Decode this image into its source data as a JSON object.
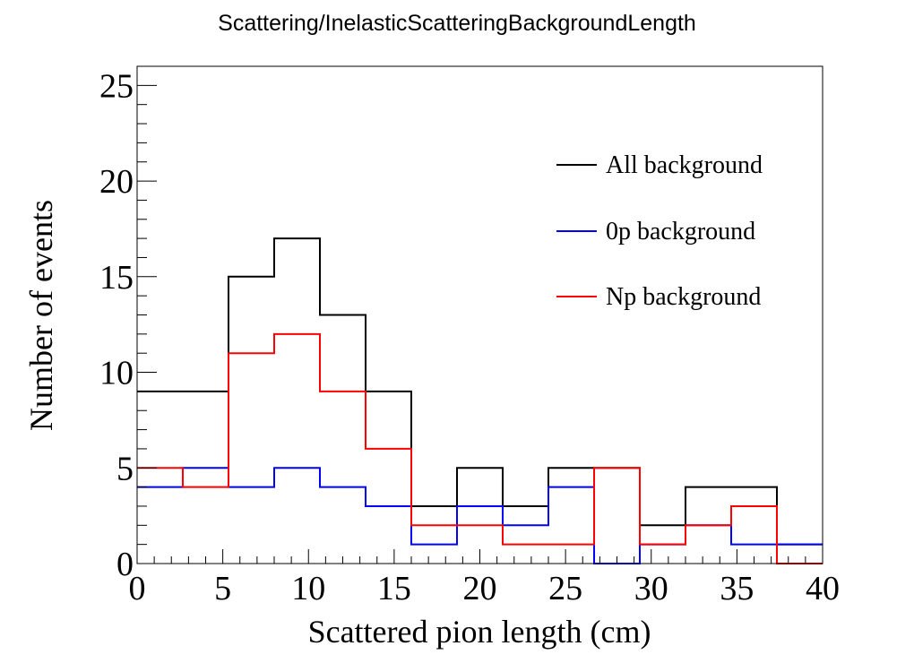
{
  "chart_data": {
    "type": "histogram",
    "title": "Scattering/InelasticScatteringBackgroundLength",
    "xlabel": "Scattered pion length (cm)",
    "ylabel": "Number of events",
    "xlim": [
      0,
      40
    ],
    "ylim": [
      0,
      26
    ],
    "x_ticks": [
      "0",
      "5",
      "10",
      "15",
      "20",
      "25",
      "30",
      "35",
      "40"
    ],
    "y_ticks": [
      "0",
      "5",
      "10",
      "15",
      "20",
      "25"
    ],
    "bin_edges": [
      0,
      2.667,
      5.333,
      8,
      10.667,
      13.333,
      16,
      18.667,
      21.333,
      24,
      26.667,
      29.333,
      32,
      34.667,
      37.333,
      40
    ],
    "grid": false,
    "legend_position": "top-right",
    "series": [
      {
        "name": "All background",
        "color": "#000000",
        "values": [
          9,
          9,
          15,
          17,
          13,
          9,
          3,
          5,
          3,
          5,
          5,
          2,
          4,
          4,
          1
        ]
      },
      {
        "name": "0p background",
        "color": "#0000ff",
        "values": [
          4,
          5,
          4,
          5,
          4,
          3,
          1,
          3,
          2,
          4,
          0,
          1,
          2,
          1,
          1
        ]
      },
      {
        "name": "Np background",
        "color": "#ff0000",
        "values": [
          5,
          4,
          11,
          12,
          9,
          6,
          2,
          2,
          1,
          1,
          5,
          1,
          2,
          3,
          0
        ]
      }
    ]
  }
}
